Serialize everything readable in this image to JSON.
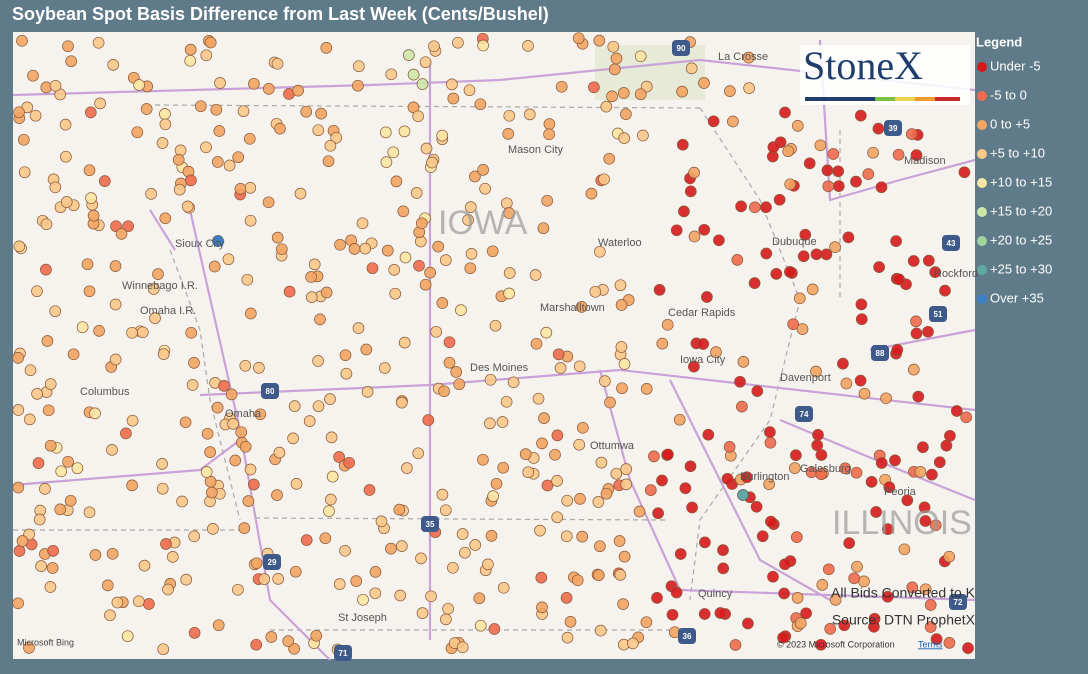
{
  "header": {
    "title": "Soybean Spot Basis Difference from Last Week (Cents/Bushel)"
  },
  "legend": {
    "title": "Legend",
    "items": [
      {
        "label": "Under -5",
        "color": "#d7191c"
      },
      {
        "label": "-5 to 0",
        "color": "#ee6a4d"
      },
      {
        "label": "0 to +5",
        "color": "#f3a462"
      },
      {
        "label": "+5 to +10",
        "color": "#f9c88a"
      },
      {
        "label": "+10 to +15",
        "color": "#fbe6a2"
      },
      {
        "label": "+15 to +20",
        "color": "#cde7a7"
      },
      {
        "label": "+20 to +25",
        "color": "#9fd59a"
      },
      {
        "label": "+25 to +30",
        "color": "#5fa9a2"
      },
      {
        "label": "Over +35",
        "color": "#3b7fc4"
      }
    ]
  },
  "map": {
    "regions": [
      "IOWA",
      "ILLINOIS"
    ],
    "cities": [
      "Sioux City",
      "Mason City",
      "Waterloo",
      "Dubuque",
      "Madison",
      "Rockford",
      "Cedar Rapids",
      "Iowa City",
      "Davenport",
      "Des Moines",
      "Marshalltown",
      "Omaha",
      "Columbus",
      "Ottumwa",
      "Galesburg",
      "Peoria",
      "Quincy",
      "Burlington",
      "St Joseph",
      "La Crosse",
      "Winnebago I.R.",
      "Omaha I.R."
    ],
    "highways": [
      "90",
      "29",
      "35",
      "80",
      "39",
      "43",
      "51",
      "88",
      "74",
      "72",
      "36",
      "71"
    ]
  },
  "notes": [
    "All Bids Converted to K",
    "Source: DTN ProphetX"
  ],
  "logo": "StoneX",
  "attribution": {
    "bing": "Microsoft Bing",
    "copyright": "© 2023 Microsoft Corporation",
    "terms": "Terms"
  }
}
